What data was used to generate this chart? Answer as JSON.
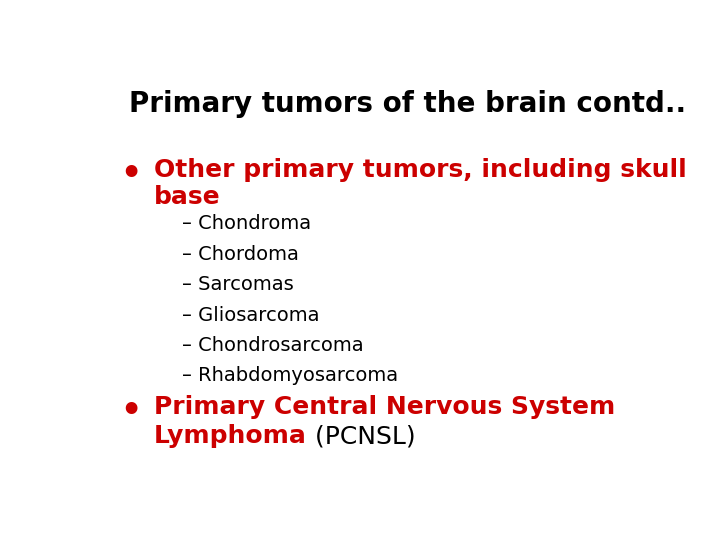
{
  "background_color": "#ffffff",
  "title": "Primary tumors of the brain contd..",
  "title_color": "#000000",
  "title_fontsize": 20,
  "title_bold": true,
  "bullet1_line1": "Other primary tumors, including skull",
  "bullet1_line2": "base",
  "bullet1_color": "#cc0000",
  "bullet1_fontsize": 18,
  "bullet1_bold": true,
  "sub_items": [
    "– Chondroma",
    "– Chordoma",
    "– Sarcomas",
    "– Gliosarcoma",
    "– Chondrosarcoma",
    "– Rhabdomyosarcoma"
  ],
  "sub_color": "#000000",
  "sub_fontsize": 14,
  "bullet2_line1_red": "Primary Central Nervous System",
  "bullet2_line2_red": "Lymphoma",
  "bullet2_line2_black": " (PCNSL)",
  "bullet2_color_red": "#cc0000",
  "bullet2_color_black": "#000000",
  "bullet2_fontsize": 18,
  "bullet2_bold": true,
  "bullet_dot_color": "#cc0000",
  "bullet_dot_size": 18
}
